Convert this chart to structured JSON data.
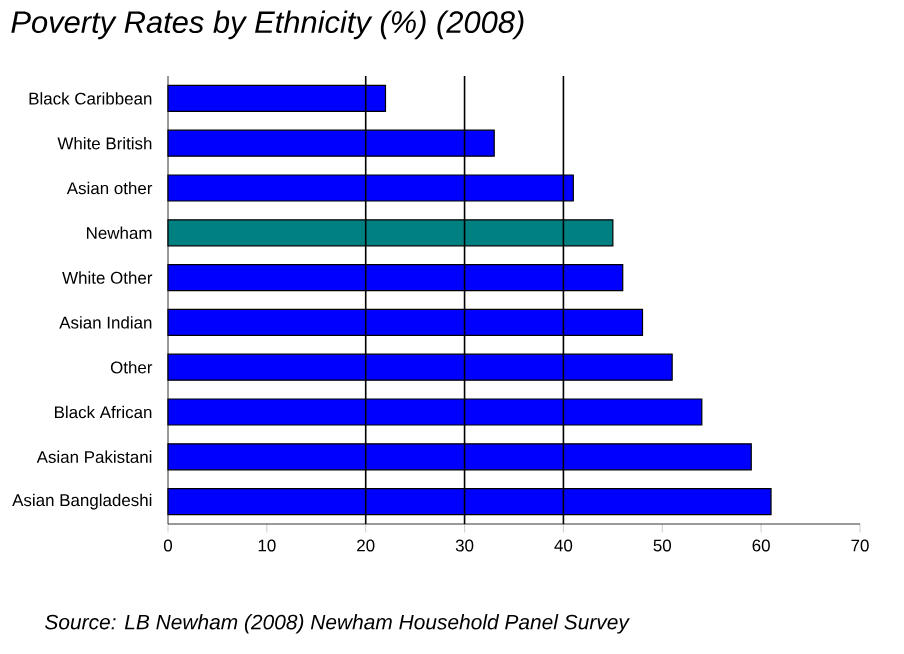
{
  "chart_data": {
    "type": "bar",
    "orientation": "horizontal",
    "title": "Poverty Rates by Ethnicity (%) (2008)",
    "categories": [
      "Black Caribbean",
      "White British",
      "Asian other",
      "Newham",
      "White Other",
      "Asian Indian",
      "Other",
      "Black African",
      "Asian Pakistani",
      "Asian Bangladeshi"
    ],
    "values": [
      22,
      33,
      41,
      45,
      46,
      48,
      51,
      54,
      59,
      61
    ],
    "colors": [
      "#0000ff",
      "#0000ff",
      "#0000ff",
      "#008080",
      "#0000ff",
      "#0000ff",
      "#0000ff",
      "#0000ff",
      "#0000ff",
      "#0000ff"
    ],
    "xlim": [
      0,
      70
    ],
    "xticks": [
      0,
      10,
      20,
      30,
      40,
      50,
      60,
      70
    ],
    "ref_lines": [
      {
        "axis": "x",
        "value": 20,
        "color": "#000000"
      },
      {
        "axis": "x",
        "value": 30,
        "color": "#000000"
      },
      {
        "axis": "x",
        "value": 40,
        "color": "#000000"
      }
    ],
    "annotations": [
      "Source: LB Newham (2008) Newham Household Panel Survey"
    ]
  }
}
